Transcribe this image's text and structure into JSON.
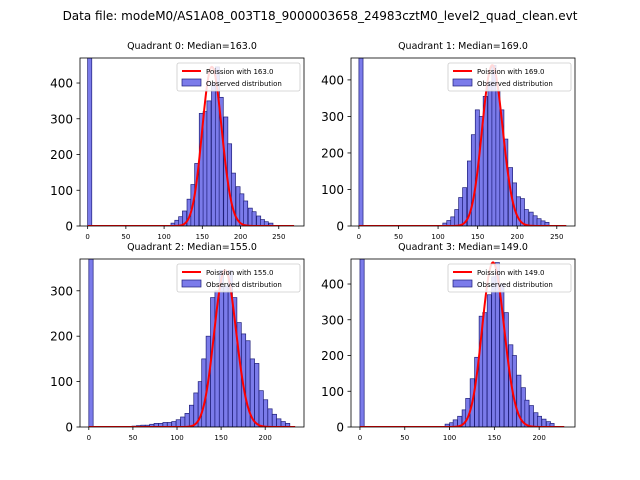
{
  "suptitle": "Data file: modeM0/AS1A08_003T18_9000003658_24983cztM0_level2_quad_clean.evt",
  "colors": {
    "bar_fill": "#7b7bea",
    "bar_edge": "#1f1f7a",
    "fit_line": "#ff0000"
  },
  "chart_data": [
    {
      "type": "bar",
      "title": "Quadrant 0: Median=163.0",
      "legend": [
        "Poission with 163.0",
        "Observed distribution"
      ],
      "legend_placement": "upper right",
      "xlim": [
        -10,
        283
      ],
      "ylim": [
        0,
        470
      ],
      "xticks": [
        0,
        50,
        100,
        150,
        200,
        250
      ],
      "yticks": [
        0,
        100,
        200,
        300,
        400
      ],
      "bin_width": 5.4,
      "bars": [
        [
          0,
          470
        ],
        [
          109,
          8
        ],
        [
          114,
          16
        ],
        [
          119,
          26
        ],
        [
          124,
          42
        ],
        [
          130,
          75
        ],
        [
          135,
          116
        ],
        [
          140,
          175
        ],
        [
          146,
          315
        ],
        [
          151,
          320
        ],
        [
          156,
          350
        ],
        [
          162,
          400
        ],
        [
          167,
          445
        ],
        [
          172,
          360
        ],
        [
          178,
          305
        ],
        [
          183,
          230
        ],
        [
          188,
          148
        ],
        [
          194,
          110
        ],
        [
          199,
          90
        ],
        [
          204,
          70
        ],
        [
          210,
          50
        ],
        [
          215,
          40
        ],
        [
          221,
          28
        ],
        [
          226,
          18
        ],
        [
          231,
          12
        ],
        [
          237,
          8
        ]
      ],
      "fit": {
        "mean": 163.0,
        "x_range": [
          0,
          270
        ]
      }
    },
    {
      "type": "bar",
      "title": "Quadrant 1: Median=169.0",
      "legend": [
        "Poission with 169.0",
        "Observed distribution"
      ],
      "legend_placement": "upper right",
      "xlim": [
        -10,
        273
      ],
      "ylim": [
        0,
        460
      ],
      "xticks": [
        0,
        50,
        100,
        150,
        200,
        250
      ],
      "yticks": [
        0,
        100,
        200,
        300,
        400
      ],
      "bin_width": 5.2,
      "bars": [
        [
          0,
          460
        ],
        [
          106,
          8
        ],
        [
          111,
          15
        ],
        [
          116,
          25
        ],
        [
          121,
          45
        ],
        [
          126,
          78
        ],
        [
          131,
          105
        ],
        [
          137,
          178
        ],
        [
          142,
          250
        ],
        [
          147,
          318
        ],
        [
          152,
          300
        ],
        [
          157,
          355
        ],
        [
          163,
          395
        ],
        [
          168,
          440
        ],
        [
          173,
          370
        ],
        [
          178,
          318
        ],
        [
          183,
          238
        ],
        [
          189,
          160
        ],
        [
          194,
          118
        ],
        [
          199,
          80
        ],
        [
          204,
          75
        ],
        [
          209,
          45
        ],
        [
          215,
          38
        ],
        [
          220,
          28
        ],
        [
          225,
          20
        ],
        [
          230,
          14
        ],
        [
          235,
          10
        ]
      ],
      "fit": {
        "mean": 169.0,
        "x_range": [
          0,
          262
        ]
      }
    },
    {
      "type": "bar",
      "title": "Quadrant 2: Median=155.0",
      "legend": [
        "Poission with 155.0",
        "Observed distribution"
      ],
      "legend_placement": "upper right",
      "xlim": [
        -10,
        244
      ],
      "ylim": [
        0,
        370
      ],
      "xticks": [
        0,
        50,
        100,
        150,
        200
      ],
      "yticks": [
        0,
        100,
        200,
        300
      ],
      "bin_width": 4.9,
      "bars": [
        [
          0,
          370
        ],
        [
          49,
          2
        ],
        [
          54,
          3
        ],
        [
          59,
          4
        ],
        [
          64,
          4
        ],
        [
          69,
          6
        ],
        [
          74,
          8
        ],
        [
          79,
          8
        ],
        [
          84,
          10
        ],
        [
          89,
          10
        ],
        [
          94,
          12
        ],
        [
          99,
          16
        ],
        [
          104,
          22
        ],
        [
          109,
          30
        ],
        [
          114,
          48
        ],
        [
          119,
          75
        ],
        [
          124,
          100
        ],
        [
          128,
          150
        ],
        [
          133,
          200
        ],
        [
          138,
          285
        ],
        [
          143,
          300
        ],
        [
          148,
          345
        ],
        [
          153,
          310
        ],
        [
          158,
          345
        ],
        [
          163,
          285
        ],
        [
          168,
          230
        ],
        [
          173,
          205
        ],
        [
          178,
          190
        ],
        [
          183,
          150
        ],
        [
          188,
          140
        ],
        [
          193,
          80
        ],
        [
          198,
          60
        ],
        [
          203,
          40
        ],
        [
          208,
          28
        ],
        [
          213,
          18
        ],
        [
          218,
          12
        ],
        [
          223,
          8
        ]
      ],
      "fit": {
        "mean": 155.0,
        "x_range": [
          0,
          234
        ]
      }
    },
    {
      "type": "bar",
      "title": "Quadrant 3: Median=149.0",
      "legend": [
        "Poission with 149.0",
        "Observed distribution"
      ],
      "legend_placement": "upper right",
      "xlim": [
        -10,
        240
      ],
      "ylim": [
        0,
        470
      ],
      "xticks": [
        0,
        50,
        100,
        150,
        200
      ],
      "yticks": [
        0,
        100,
        200,
        300,
        400
      ],
      "bin_width": 4.7,
      "bars": [
        [
          0,
          470
        ],
        [
          95,
          8
        ],
        [
          100,
          12
        ],
        [
          104,
          20
        ],
        [
          109,
          30
        ],
        [
          114,
          48
        ],
        [
          118,
          80
        ],
        [
          123,
          135
        ],
        [
          128,
          195
        ],
        [
          133,
          310
        ],
        [
          137,
          320
        ],
        [
          142,
          370
        ],
        [
          147,
          420
        ],
        [
          151,
          460
        ],
        [
          156,
          400
        ],
        [
          161,
          320
        ],
        [
          166,
          230
        ],
        [
          170,
          200
        ],
        [
          175,
          145
        ],
        [
          180,
          110
        ],
        [
          184,
          75
        ],
        [
          189,
          60
        ],
        [
          194,
          40
        ],
        [
          198,
          30
        ],
        [
          203,
          22
        ],
        [
          208,
          15
        ],
        [
          212,
          10
        ]
      ],
      "fit": {
        "mean": 149.0,
        "x_range": [
          0,
          228
        ]
      }
    }
  ]
}
